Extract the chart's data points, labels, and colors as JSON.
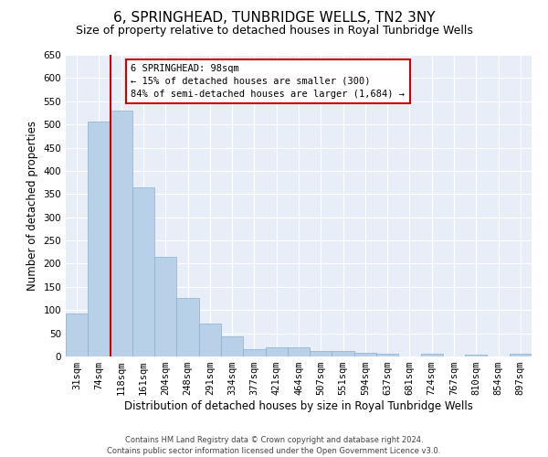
{
  "title": "6, SPRINGHEAD, TUNBRIDGE WELLS, TN2 3NY",
  "subtitle": "Size of property relative to detached houses in Royal Tunbridge Wells",
  "xlabel": "Distribution of detached houses by size in Royal Tunbridge Wells",
  "ylabel": "Number of detached properties",
  "categories": [
    "31sqm",
    "74sqm",
    "118sqm",
    "161sqm",
    "204sqm",
    "248sqm",
    "291sqm",
    "334sqm",
    "377sqm",
    "421sqm",
    "464sqm",
    "507sqm",
    "551sqm",
    "594sqm",
    "637sqm",
    "681sqm",
    "724sqm",
    "767sqm",
    "810sqm",
    "854sqm",
    "897sqm"
  ],
  "values": [
    92,
    507,
    530,
    365,
    215,
    126,
    70,
    43,
    16,
    19,
    19,
    11,
    11,
    7,
    5,
    0,
    5,
    0,
    4,
    0,
    5
  ],
  "bar_color": "#b8d0e8",
  "bar_edge_color": "#8ab0d0",
  "vline_x": 1.5,
  "vline_color": "#cc0000",
  "ylim": [
    0,
    650
  ],
  "yticks": [
    0,
    50,
    100,
    150,
    200,
    250,
    300,
    350,
    400,
    450,
    500,
    550,
    600,
    650
  ],
  "annotation_title": "6 SPRINGHEAD: 98sqm",
  "annotation_line1": "← 15% of detached houses are smaller (300)",
  "annotation_line2": "84% of semi-detached houses are larger (1,684) →",
  "annotation_box_facecolor": "#ffffff",
  "annotation_box_edgecolor": "#cc0000",
  "footer1": "Contains HM Land Registry data © Crown copyright and database right 2024.",
  "footer2": "Contains public sector information licensed under the Open Government Licence v3.0.",
  "plot_bg_color": "#e8eef8",
  "fig_bg_color": "#ffffff",
  "grid_color": "#ffffff",
  "title_fontsize": 11,
  "subtitle_fontsize": 9,
  "tick_fontsize": 7.5,
  "ylabel_fontsize": 8.5,
  "xlabel_fontsize": 8.5,
  "footer_fontsize": 6,
  "ann_fontsize": 7.5
}
